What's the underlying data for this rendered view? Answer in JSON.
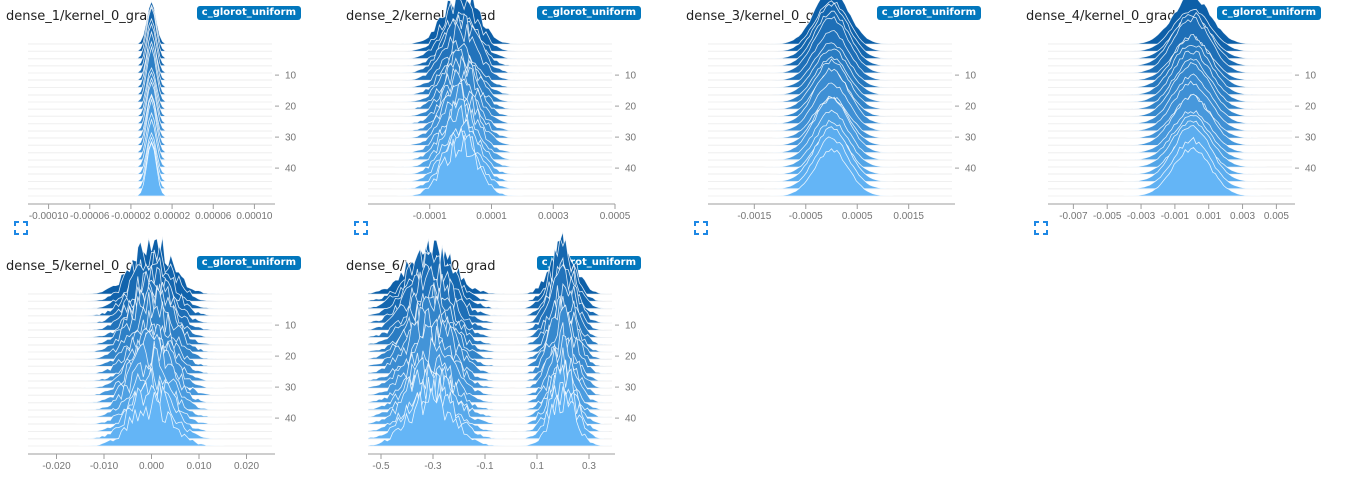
{
  "chart_data": [
    {
      "type": "histogram",
      "title": "dense_1/kernel_0_grad",
      "run": "c_glorot_uniform",
      "xlim": [
        -0.00012,
        0.00012
      ],
      "x_ticks": [
        -0.0001,
        -6e-05,
        -2e-05,
        2e-05,
        6e-05,
        0.0001
      ],
      "x_tick_labels": [
        "-0.00010",
        "-0.00006",
        "-0.00002",
        "0.00002",
        "0.00006",
        "0.00010"
      ],
      "step_ticks": [
        10,
        20,
        30,
        40
      ],
      "step_range": [
        0,
        49
      ],
      "modes": [
        {
          "center": 0.0,
          "width": 4.5e-06
        }
      ],
      "jitter": 0.02
    },
    {
      "type": "histogram",
      "title": "dense_2/kernel_0_grad",
      "run": "c_glorot_uniform",
      "xlim": [
        -0.0003,
        0.0005
      ],
      "x_ticks": [
        -0.0001,
        0.0001,
        0.0003,
        0.0005
      ],
      "x_tick_labels": [
        "-0.0001",
        "0.0001",
        "0.0003",
        "0.0005"
      ],
      "step_ticks": [
        10,
        20,
        30,
        40
      ],
      "step_range": [
        0,
        49
      ],
      "modes": [
        {
          "center": 0.0,
          "width": 5.5e-05
        }
      ],
      "jitter": 0.25
    },
    {
      "type": "histogram",
      "title": "dense_3/kernel_0_grad",
      "run": "c_glorot_uniform",
      "xlim": [
        -0.0024,
        0.0024
      ],
      "x_ticks": [
        -0.0015,
        -0.0005,
        0.0005,
        0.0015
      ],
      "x_tick_labels": [
        "-0.0015",
        "-0.0005",
        "0.0005",
        "0.0015"
      ],
      "step_ticks": [
        10,
        20,
        30,
        40
      ],
      "step_range": [
        0,
        49
      ],
      "modes": [
        {
          "center": 0.0,
          "width": 0.00033
        }
      ],
      "jitter": 0.05
    },
    {
      "type": "histogram",
      "title": "dense_4/kernel_0_grad",
      "run": "c_glorot_uniform",
      "xlim": [
        -0.0085,
        0.0061
      ],
      "x_ticks": [
        -0.007,
        -0.005,
        -0.003,
        -0.001,
        0.001,
        0.003,
        0.005
      ],
      "x_tick_labels": [
        "-0.007",
        "-0.005",
        "-0.003",
        "-0.001",
        "0.001",
        "0.003",
        "0.005"
      ],
      "step_ticks": [
        10,
        20,
        30,
        40
      ],
      "step_range": [
        0,
        49
      ],
      "modes": [
        {
          "center": 0.0,
          "width": 0.0011
        }
      ],
      "jitter": 0.06
    },
    {
      "type": "histogram",
      "title": "dense_5/kernel_0_grad",
      "run": "c_glorot_uniform",
      "xlim": [
        -0.026,
        0.026
      ],
      "x_ticks": [
        -0.02,
        -0.01,
        0.0,
        0.01,
        0.02
      ],
      "x_tick_labels": [
        "-0.020",
        "-0.010",
        "0.000",
        "0.010",
        "0.020"
      ],
      "step_ticks": [
        10,
        20,
        30,
        40
      ],
      "step_range": [
        0,
        49
      ],
      "modes": [
        {
          "center": 0.0,
          "width": 0.0042
        }
      ],
      "jitter": 0.35
    },
    {
      "type": "histogram",
      "title": "dense_6/kernel_0_grad",
      "run": "c_glorot_uniform",
      "xlim": [
        -0.55,
        0.4
      ],
      "x_ticks": [
        -0.5,
        -0.3,
        -0.1,
        0.1,
        0.3
      ],
      "x_tick_labels": [
        "-0.5",
        "-0.3",
        "-0.1",
        "0.1",
        "0.3"
      ],
      "step_ticks": [
        10,
        20,
        30,
        40
      ],
      "step_range": [
        0,
        49
      ],
      "modes": [
        {
          "center": -0.31,
          "width": 0.085
        },
        {
          "center": 0.2,
          "width": 0.05
        }
      ],
      "jitter": 0.35
    }
  ],
  "colors": {
    "front": "#64b5f6",
    "back": "#0d5fa8",
    "stroke": "#ffffff",
    "badge": "#0277bd",
    "expand_icon": "#1e88e5"
  },
  "expand_icon": "fullscreen-icon"
}
